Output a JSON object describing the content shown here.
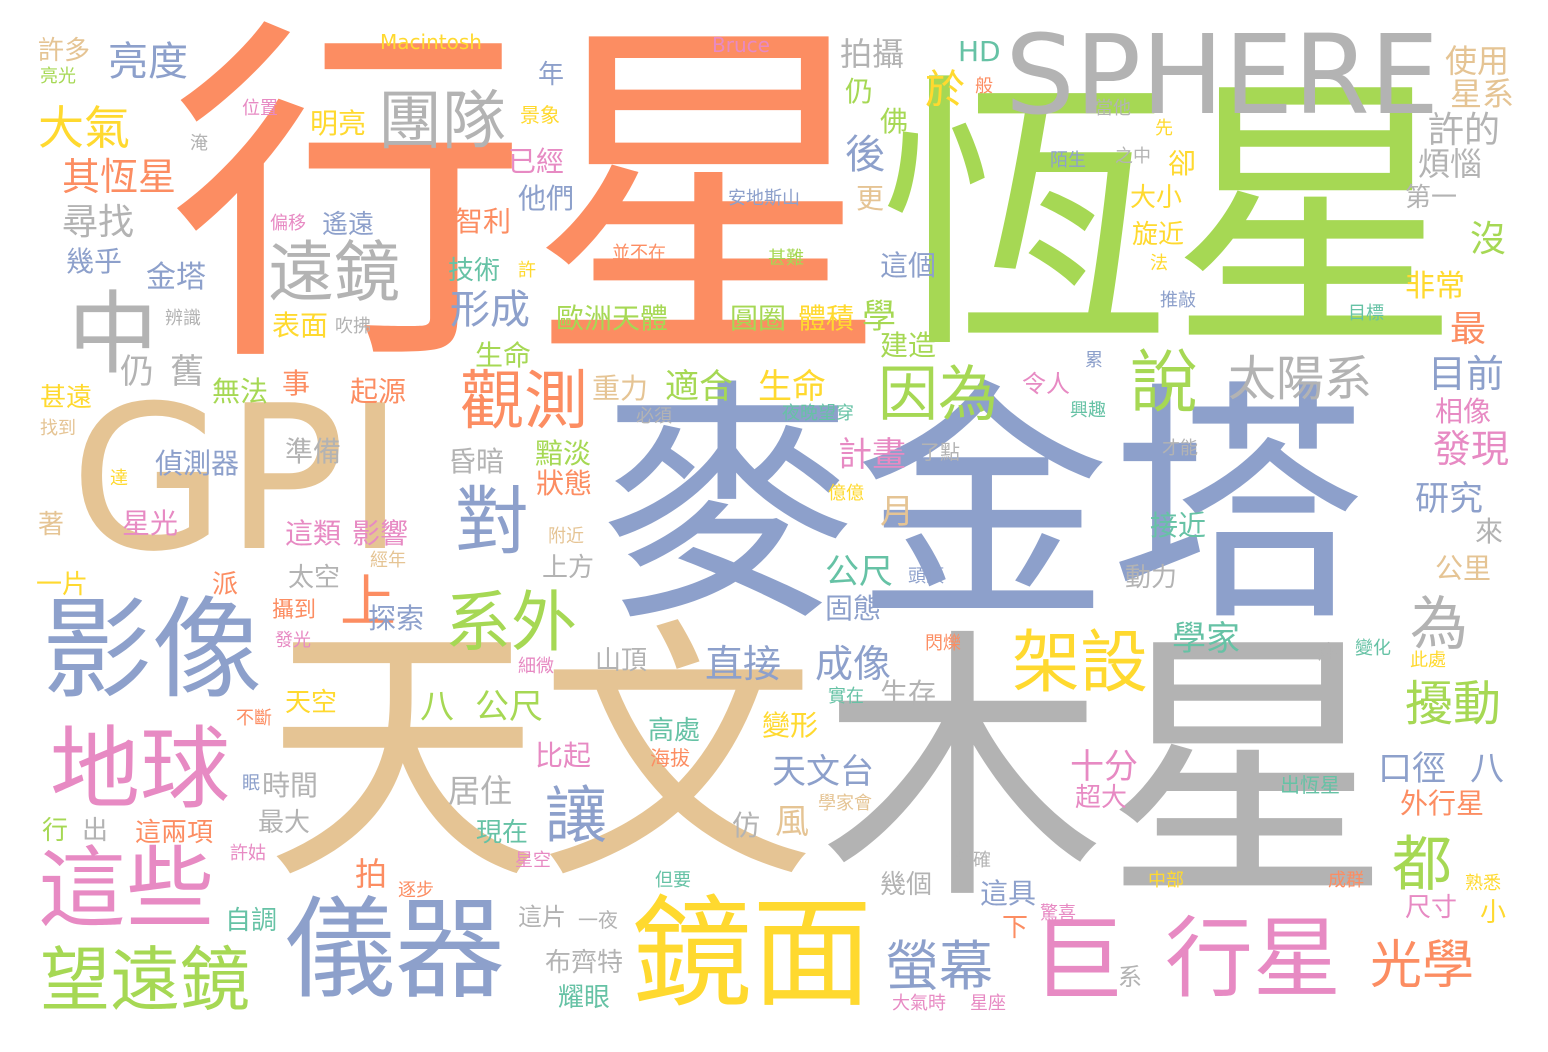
{
  "palette": {
    "orange": "#fc8d62",
    "green": "#a6d854",
    "gray": "#b3b3b3",
    "tan": "#e5c494",
    "blue": "#8da0cb",
    "pink": "#e78ac3",
    "yellow": "#ffd92f",
    "teal": "#66c2a5"
  },
  "words": [
    {
      "text": "行星",
      "color": "orange"
    },
    {
      "text": "恆星",
      "color": "green"
    },
    {
      "text": "SPHERE",
      "color": "gray"
    },
    {
      "text": "GPI",
      "color": "tan"
    },
    {
      "text": "麥金塔",
      "color": "blue"
    },
    {
      "text": "天文",
      "color": "tan"
    },
    {
      "text": "木星",
      "color": "gray"
    },
    {
      "text": "影像",
      "color": "blue"
    },
    {
      "text": "中",
      "color": "gray"
    },
    {
      "text": "遠鏡",
      "color": "gray"
    },
    {
      "text": "團隊",
      "color": "gray"
    },
    {
      "text": "地球",
      "color": "pink"
    },
    {
      "text": "這些",
      "color": "pink"
    },
    {
      "text": "儀器",
      "color": "blue"
    },
    {
      "text": "鏡面",
      "color": "yellow"
    },
    {
      "text": "巨",
      "color": "pink"
    },
    {
      "text": "行星",
      "color": "pink"
    },
    {
      "text": "望遠鏡",
      "color": "green"
    },
    {
      "text": "觀測",
      "color": "orange"
    },
    {
      "text": "對",
      "color": "blue"
    },
    {
      "text": "系外",
      "color": "green"
    },
    {
      "text": "架設",
      "color": "yellow"
    },
    {
      "text": "因為",
      "color": "green"
    },
    {
      "text": "說",
      "color": "green"
    },
    {
      "text": "太陽系",
      "color": "gray"
    },
    {
      "text": "讓",
      "color": "blue"
    },
    {
      "text": "都",
      "color": "green"
    },
    {
      "text": "光學",
      "color": "orange"
    },
    {
      "text": "螢幕",
      "color": "blue"
    },
    {
      "text": "為",
      "color": "gray"
    },
    {
      "text": "擾動",
      "color": "green"
    },
    {
      "text": "上",
      "color": "orange"
    },
    {
      "text": "亮度",
      "color": "blue"
    },
    {
      "text": "大氣",
      "color": "yellow"
    },
    {
      "text": "其恆星",
      "color": "orange"
    },
    {
      "text": "尋找",
      "color": "gray"
    },
    {
      "text": "幾乎",
      "color": "blue"
    },
    {
      "text": "金塔",
      "color": "blue"
    },
    {
      "text": "許多",
      "color": "tan"
    },
    {
      "text": "亮光",
      "color": "green"
    },
    {
      "text": "Macintosh",
      "color": "yellow"
    },
    {
      "text": "Bruce",
      "color": "pink"
    },
    {
      "text": "拍攝",
      "color": "gray"
    },
    {
      "text": "HD",
      "color": "teal"
    },
    {
      "text": "使用",
      "color": "tan"
    },
    {
      "text": "星系",
      "color": "tan"
    },
    {
      "text": "許的",
      "color": "gray"
    },
    {
      "text": "煩惱",
      "color": "gray"
    },
    {
      "text": "第一",
      "color": "gray"
    },
    {
      "text": "沒",
      "color": "green"
    },
    {
      "text": "非常",
      "color": "yellow"
    },
    {
      "text": "最",
      "color": "orange"
    },
    {
      "text": "目前",
      "color": "blue"
    },
    {
      "text": "相像",
      "color": "pink"
    },
    {
      "text": "發現",
      "color": "pink"
    },
    {
      "text": "研究",
      "color": "blue"
    },
    {
      "text": "來",
      "color": "gray"
    },
    {
      "text": "公里",
      "color": "tan"
    },
    {
      "text": "年",
      "color": "blue"
    },
    {
      "text": "於",
      "color": "yellow"
    },
    {
      "text": "仍",
      "color": "green"
    },
    {
      "text": "佛",
      "color": "green"
    },
    {
      "text": "後",
      "color": "blue"
    },
    {
      "text": "更",
      "color": "tan"
    },
    {
      "text": "明亮",
      "color": "yellow"
    },
    {
      "text": "景象",
      "color": "yellow"
    },
    {
      "text": "已經",
      "color": "pink"
    },
    {
      "text": "他們",
      "color": "blue"
    },
    {
      "text": "智利",
      "color": "orange"
    },
    {
      "text": "技術",
      "color": "teal"
    },
    {
      "text": "形成",
      "color": "blue"
    },
    {
      "text": "歐洲天體",
      "color": "green"
    },
    {
      "text": "圓圈",
      "color": "green"
    },
    {
      "text": "體積",
      "color": "yellow"
    },
    {
      "text": "學",
      "color": "green"
    },
    {
      "text": "建造",
      "color": "green"
    },
    {
      "text": "這個",
      "color": "blue"
    },
    {
      "text": "生命",
      "color": "green"
    },
    {
      "text": "適合",
      "color": "green"
    },
    {
      "text": "生命",
      "color": "yellow"
    },
    {
      "text": "重力",
      "color": "tan"
    },
    {
      "text": "起源",
      "color": "orange"
    },
    {
      "text": "無法",
      "color": "green"
    },
    {
      "text": "事",
      "color": "orange"
    },
    {
      "text": "仍",
      "color": "gray"
    },
    {
      "text": "舊",
      "color": "gray"
    },
    {
      "text": "表面",
      "color": "yellow"
    },
    {
      "text": "偵測器",
      "color": "blue"
    },
    {
      "text": "準備",
      "color": "gray"
    },
    {
      "text": "昏暗",
      "color": "gray"
    },
    {
      "text": "黯淡",
      "color": "green"
    },
    {
      "text": "狀態",
      "color": "orange"
    },
    {
      "text": "星光",
      "color": "pink"
    },
    {
      "text": "這類",
      "color": "pink"
    },
    {
      "text": "影響",
      "color": "pink"
    },
    {
      "text": "太空",
      "color": "gray"
    },
    {
      "text": "攝到",
      "color": "orange"
    },
    {
      "text": "探索",
      "color": "blue"
    },
    {
      "text": "山頂",
      "color": "gray"
    },
    {
      "text": "八",
      "color": "green"
    },
    {
      "text": "公尺",
      "color": "green"
    },
    {
      "text": "直接",
      "color": "blue"
    },
    {
      "text": "成像",
      "color": "blue"
    },
    {
      "text": "生存",
      "color": "gray"
    },
    {
      "text": "高處",
      "color": "teal"
    },
    {
      "text": "海拔",
      "color": "orange"
    },
    {
      "text": "比起",
      "color": "pink"
    },
    {
      "text": "居住",
      "color": "gray"
    },
    {
      "text": "天文台",
      "color": "blue"
    },
    {
      "text": "十分",
      "color": "pink"
    },
    {
      "text": "超大",
      "color": "pink"
    },
    {
      "text": "風",
      "color": "tan"
    },
    {
      "text": "變形",
      "color": "yellow"
    },
    {
      "text": "計畫",
      "color": "pink"
    },
    {
      "text": "月",
      "color": "tan"
    },
    {
      "text": "公尺",
      "color": "teal"
    },
    {
      "text": "固態",
      "color": "blue"
    },
    {
      "text": "動力",
      "color": "gray"
    },
    {
      "text": "學家",
      "color": "teal"
    },
    {
      "text": "接近",
      "color": "teal"
    },
    {
      "text": "口徑",
      "color": "blue"
    },
    {
      "text": "八",
      "color": "blue"
    },
    {
      "text": "外行星",
      "color": "orange"
    },
    {
      "text": "時間",
      "color": "gray"
    },
    {
      "text": "最大",
      "color": "gray"
    },
    {
      "text": "這兩項",
      "color": "orange"
    },
    {
      "text": "現在",
      "color": "teal"
    },
    {
      "text": "仿",
      "color": "gray"
    },
    {
      "text": "行",
      "color": "green"
    },
    {
      "text": "出",
      "color": "gray"
    },
    {
      "text": "一片",
      "color": "yellow"
    },
    {
      "text": "派",
      "color": "orange"
    },
    {
      "text": "著",
      "color": "tan"
    },
    {
      "text": "天空",
      "color": "yellow"
    },
    {
      "text": "拍",
      "color": "orange"
    },
    {
      "text": "幾個",
      "color": "gray"
    },
    {
      "text": "這具",
      "color": "blue"
    },
    {
      "text": "下",
      "color": "orange"
    },
    {
      "text": "系",
      "color": "gray"
    },
    {
      "text": "自調",
      "color": "teal"
    },
    {
      "text": "這片",
      "color": "gray"
    },
    {
      "text": "一夜",
      "color": "gray"
    },
    {
      "text": "布齊特",
      "color": "gray"
    },
    {
      "text": "耀眼",
      "color": "teal"
    },
    {
      "text": "上方",
      "color": "gray"
    },
    {
      "text": "尺寸",
      "color": "pink"
    },
    {
      "text": "小",
      "color": "yellow"
    },
    {
      "text": "卻",
      "color": "yellow"
    },
    {
      "text": "大小",
      "color": "yellow"
    },
    {
      "text": "旋近",
      "color": "yellow"
    },
    {
      "text": "遙遠",
      "color": "blue"
    },
    {
      "text": "甚遠",
      "color": "yellow"
    },
    {
      "text": "找到",
      "color": "tan"
    },
    {
      "text": "位置",
      "color": "pink"
    },
    {
      "text": "淹",
      "color": "gray"
    },
    {
      "text": "偏移",
      "color": "pink"
    },
    {
      "text": "辨識",
      "color": "gray"
    },
    {
      "text": "吹拂",
      "color": "gray"
    },
    {
      "text": "安地斯山",
      "color": "blue"
    },
    {
      "text": "並不在",
      "color": "orange"
    },
    {
      "text": "甚難",
      "color": "green"
    },
    {
      "text": "陌生",
      "color": "blue"
    },
    {
      "text": "之中",
      "color": "gray"
    },
    {
      "text": "先",
      "color": "yellow"
    },
    {
      "text": "當他",
      "color": "gray"
    },
    {
      "text": "般",
      "color": "orange"
    },
    {
      "text": "許",
      "color": "yellow"
    },
    {
      "text": "法",
      "color": "yellow"
    },
    {
      "text": "推敲",
      "color": "blue"
    },
    {
      "text": "目標",
      "color": "teal"
    },
    {
      "text": "累",
      "color": "blue"
    },
    {
      "text": "令人",
      "color": "pink"
    },
    {
      "text": "興趣",
      "color": "teal"
    },
    {
      "text": "夜晚望穿",
      "color": "teal"
    },
    {
      "text": "必須",
      "color": "gray"
    },
    {
      "text": "了點",
      "color": "gray"
    },
    {
      "text": "才能",
      "color": "gray"
    },
    {
      "text": "頭頂",
      "color": "blue"
    },
    {
      "text": "達",
      "color": "yellow"
    },
    {
      "text": "億億",
      "color": "yellow"
    },
    {
      "text": "附近",
      "color": "tan"
    },
    {
      "text": "經年",
      "color": "tan"
    },
    {
      "text": "一座",
      "color": "gray"
    },
    {
      "text": "變化",
      "color": "teal"
    },
    {
      "text": "此處",
      "color": "yellow"
    },
    {
      "text": "閃爍",
      "color": "orange"
    },
    {
      "text": "細微",
      "color": "pink"
    },
    {
      "text": "發光",
      "color": "pink"
    },
    {
      "text": "實在",
      "color": "teal"
    },
    {
      "text": "不斷",
      "color": "orange"
    },
    {
      "text": "眠",
      "color": "blue"
    },
    {
      "text": "許姑",
      "color": "pink"
    },
    {
      "text": "星空",
      "color": "pink"
    },
    {
      "text": "學家會",
      "color": "tan"
    },
    {
      "text": "出恆星",
      "color": "teal"
    },
    {
      "text": "精確",
      "color": "gray"
    },
    {
      "text": "逐步",
      "color": "orange"
    },
    {
      "text": "但要",
      "color": "teal"
    },
    {
      "text": "中部",
      "color": "yellow"
    },
    {
      "text": "成群",
      "color": "orange"
    },
    {
      "text": "熟悉",
      "color": "yellow"
    },
    {
      "text": "驚喜",
      "color": "pink"
    },
    {
      "text": "大氣時",
      "color": "pink"
    },
    {
      "text": "星座",
      "color": "pink"
    }
  ]
}
